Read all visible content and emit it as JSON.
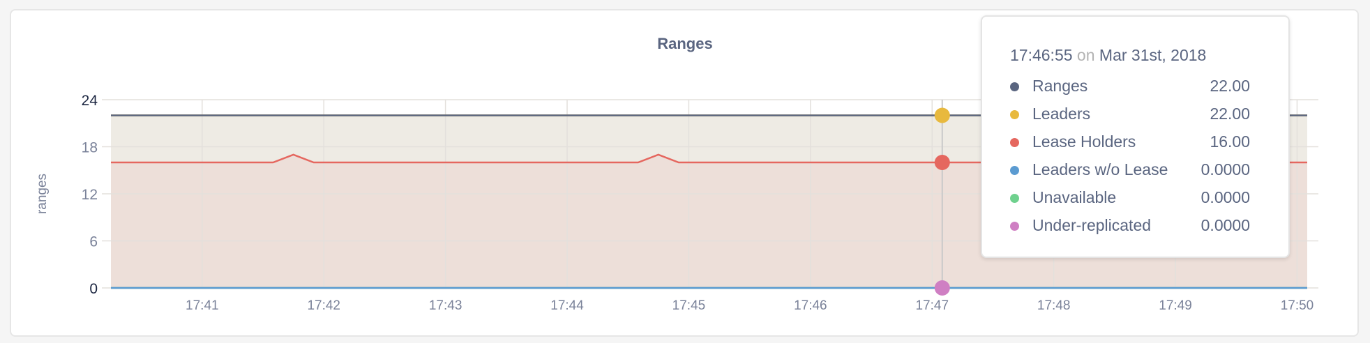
{
  "chart_data": {
    "type": "area",
    "title": "Ranges",
    "ylabel": "ranges",
    "xlabel": "",
    "ylim": [
      0,
      24
    ],
    "yticks": [
      "0",
      "6",
      "12",
      "18",
      "24"
    ],
    "xlim": [
      "17:40:15",
      "17:50:05"
    ],
    "xticks": [
      "17:41",
      "17:42",
      "17:43",
      "17:44",
      "17:45",
      "17:46",
      "17:47",
      "17:48",
      "17:49",
      "17:50"
    ],
    "grid": true,
    "series": [
      {
        "name": "Ranges",
        "color": "#5a6580",
        "points": [
          [
            "17:40:15",
            22
          ],
          [
            "17:50:05",
            22
          ]
        ]
      },
      {
        "name": "Leaders",
        "color": "#e8b93e",
        "points": [
          [
            "17:40:15",
            22
          ],
          [
            "17:50:05",
            22
          ]
        ]
      },
      {
        "name": "Lease Holders",
        "color": "#e5675f",
        "points": [
          [
            "17:40:15",
            16
          ],
          [
            "17:41:35",
            16
          ],
          [
            "17:41:45",
            17
          ],
          [
            "17:41:55",
            16
          ],
          [
            "17:44:35",
            16
          ],
          [
            "17:44:45",
            17
          ],
          [
            "17:44:55",
            16
          ],
          [
            "17:50:05",
            16
          ]
        ]
      },
      {
        "name": "Leaders w/o Lease",
        "color": "#5b9bd1",
        "points": [
          [
            "17:40:15",
            0
          ],
          [
            "17:50:05",
            0
          ]
        ]
      },
      {
        "name": "Unavailable",
        "color": "#6fd18e",
        "points": [
          [
            "17:40:15",
            0
          ],
          [
            "17:50:05",
            0
          ]
        ]
      },
      {
        "name": "Under-replicated",
        "color": "#cf7fc3",
        "points": [
          [
            "17:40:15",
            0
          ],
          [
            "17:50:05",
            0
          ]
        ]
      }
    ],
    "hover_time": "17:47:05"
  },
  "tooltip": {
    "time": "17:46:55",
    "on": "on",
    "date": "Mar 31st, 2018",
    "rows": [
      {
        "label": "Ranges",
        "value": "22.00",
        "color": "#5a6580"
      },
      {
        "label": "Leaders",
        "value": "22.00",
        "color": "#e8b93e"
      },
      {
        "label": "Lease Holders",
        "value": "16.00",
        "color": "#e5675f"
      },
      {
        "label": "Leaders w/o Lease",
        "value": "0.0000",
        "color": "#5b9bd1"
      },
      {
        "label": "Unavailable",
        "value": "0.0000",
        "color": "#6fd18e"
      },
      {
        "label": "Under-replicated",
        "value": "0.0000",
        "color": "#cf7fc3"
      }
    ]
  }
}
